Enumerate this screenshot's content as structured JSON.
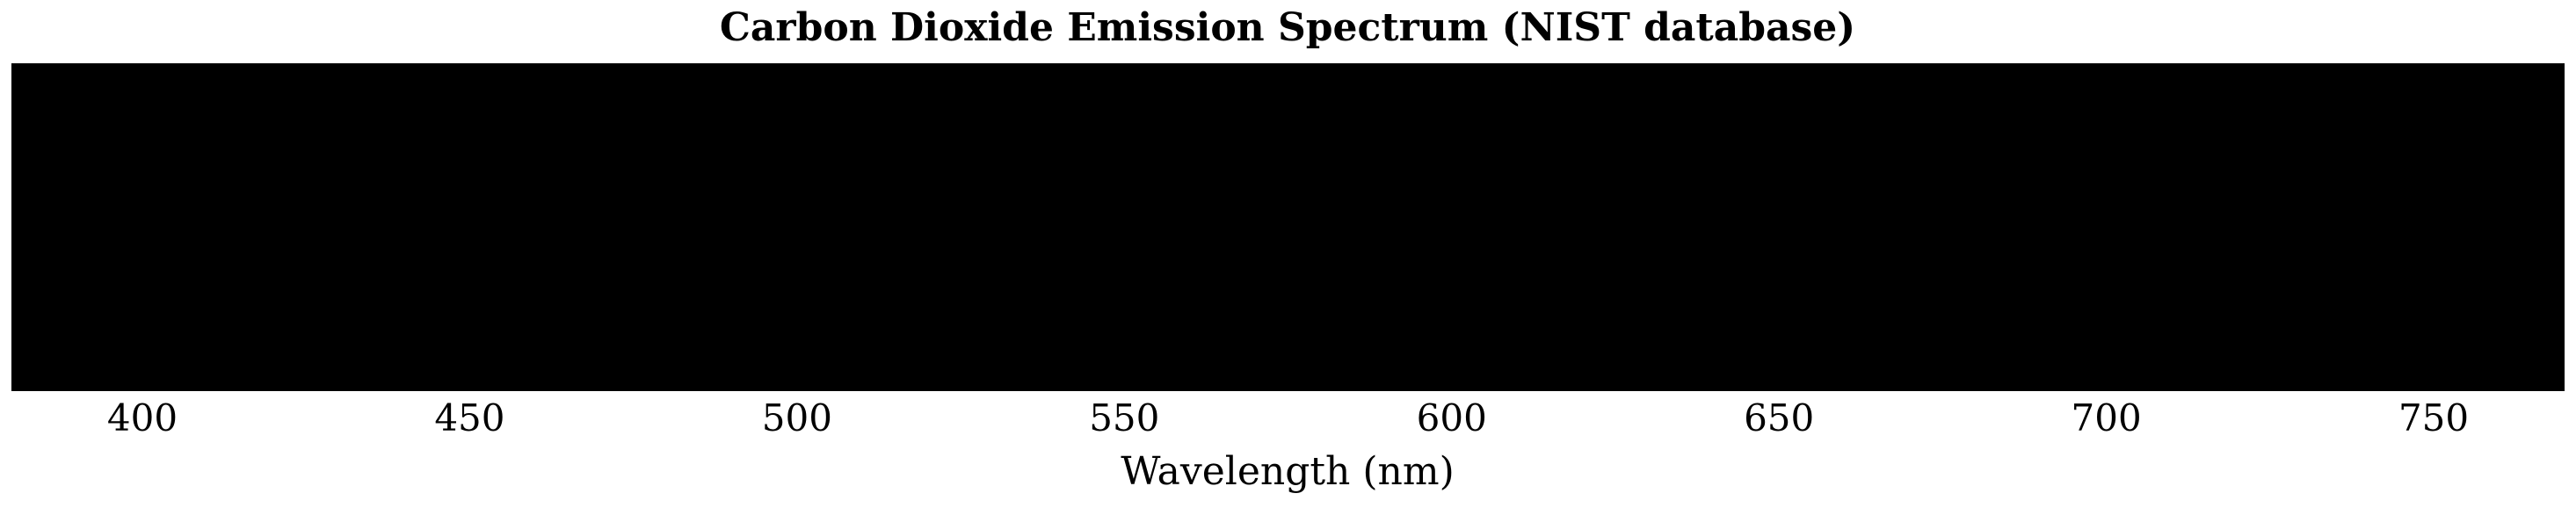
{
  "chart_data": {
    "type": "spectrum",
    "title": "Carbon Dioxide Emission Spectrum (NIST database)",
    "xlabel": "Wavelength (nm)",
    "ylabel": "",
    "xlim": [
      380,
      770
    ],
    "x_ticks": [
      400,
      450,
      500,
      550,
      600,
      650,
      700,
      750
    ],
    "x_tick_labels": [
      "400",
      "450",
      "500",
      "550",
      "600",
      "650",
      "700",
      "750"
    ],
    "background_color": "#000000",
    "grid": false,
    "legend": "none",
    "emission_lines": []
  }
}
